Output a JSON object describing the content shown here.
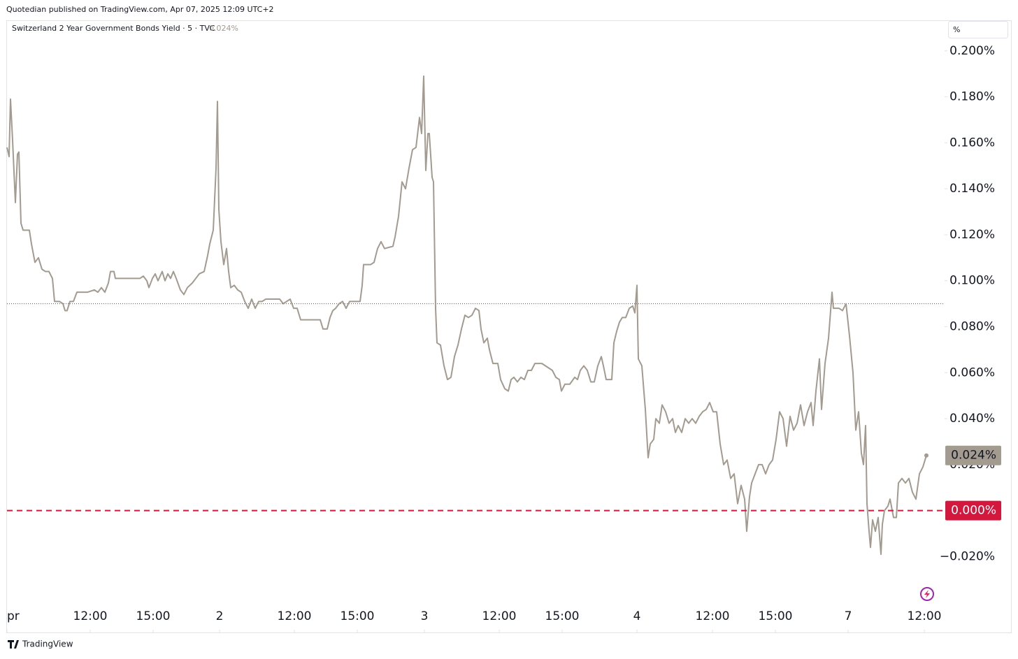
{
  "chart_data": {
    "type": "line",
    "published": "Quotedian published on TradingView.com, Apr 07, 2025 12:09 UTC+2",
    "y_unit": "%",
    "watermark": "TradingView",
    "last_value": {
      "value": 0.024,
      "label": "0.024%"
    },
    "reference_line": 0.09,
    "hlines": [
      {
        "value": 0,
        "label": "0.000%",
        "color": "#d3173d",
        "style": "dashed"
      }
    ],
    "xlim": [
      0,
      2682
    ],
    "ylim": [
      -0.053,
      0.213
    ],
    "xticks": [
      {
        "value": 0,
        "label": "pr"
      },
      {
        "value": 238,
        "label": "12:00"
      },
      {
        "value": 418,
        "label": "15:00"
      },
      {
        "value": 608,
        "label": "2"
      },
      {
        "value": 822,
        "label": "12:00"
      },
      {
        "value": 1002,
        "label": "15:00"
      },
      {
        "value": 1194,
        "label": "3"
      },
      {
        "value": 1408,
        "label": "12:00"
      },
      {
        "value": 1588,
        "label": "15:00"
      },
      {
        "value": 1802,
        "label": "4"
      },
      {
        "value": 2018,
        "label": "12:00"
      },
      {
        "value": 2198,
        "label": "15:00"
      },
      {
        "value": 2406,
        "label": "7"
      },
      {
        "value": 2624,
        "label": "12:00"
      }
    ],
    "yticks": [
      {
        "value": 0.2,
        "label": "0.200%"
      },
      {
        "value": 0.18,
        "label": "0.180%"
      },
      {
        "value": 0.16,
        "label": "0.160%"
      },
      {
        "value": 0.14,
        "label": "0.140%"
      },
      {
        "value": 0.12,
        "label": "0.120%"
      },
      {
        "value": 0.1,
        "label": "0.100%"
      },
      {
        "value": 0.08,
        "label": "0.080%"
      },
      {
        "value": 0.06,
        "label": "0.060%"
      },
      {
        "value": 0.04,
        "label": "0.040%"
      },
      {
        "value": 0.02,
        "label": "0.020%"
      },
      {
        "value": -0.02,
        "label": "−0.020%"
      }
    ],
    "x": [
      0,
      6,
      10,
      16,
      24,
      30,
      34,
      40,
      46,
      64,
      70,
      80,
      90,
      100,
      110,
      120,
      130,
      136,
      150,
      160,
      166,
      172,
      180,
      190,
      200,
      210,
      230,
      250,
      260,
      270,
      280,
      290,
      296,
      306,
      310,
      330,
      380,
      390,
      400,
      406,
      416,
      424,
      432,
      444,
      452,
      460,
      468,
      476,
      484,
      496,
      506,
      516,
      530,
      540,
      550,
      564,
      574,
      580,
      590,
      598,
      602,
      606,
      612,
      620,
      628,
      634,
      640,
      650,
      660,
      670,
      680,
      690,
      700,
      710,
      720,
      730,
      740,
      760,
      780,
      790,
      810,
      820,
      830,
      840,
      860,
      880,
      896,
      904,
      916,
      924,
      932,
      940,
      950,
      960,
      970,
      980,
      1010,
      1016,
      1020,
      1040,
      1050,
      1060,
      1070,
      1080,
      1104,
      1110,
      1120,
      1130,
      1140,
      1150,
      1160,
      1170,
      1180,
      1186,
      1192,
      1198,
      1204,
      1208,
      1216,
      1220,
      1226,
      1230,
      1240,
      1250,
      1260,
      1270,
      1280,
      1290,
      1300,
      1310,
      1320,
      1330,
      1340,
      1350,
      1356,
      1364,
      1374,
      1380,
      1390,
      1404,
      1412,
      1424,
      1434,
      1442,
      1450,
      1460,
      1470,
      1480,
      1490,
      1500,
      1510,
      1530,
      1560,
      1570,
      1580,
      1586,
      1596,
      1610,
      1624,
      1632,
      1640,
      1650,
      1660,
      1670,
      1680,
      1690,
      1700,
      1706,
      1714,
      1730,
      1736,
      1744,
      1752,
      1760,
      1770,
      1780,
      1790,
      1796,
      1802,
      1806,
      1816,
      1826,
      1834,
      1840,
      1850,
      1856,
      1866,
      1874,
      1884,
      1894,
      1904,
      1912,
      1920,
      1930,
      1940,
      1950,
      1960,
      1970,
      1980,
      1990,
      2000,
      2010,
      2020,
      2030,
      2040,
      2050,
      2060,
      2070,
      2080,
      2090,
      2100,
      2110,
      2116,
      2124,
      2130,
      2140,
      2150,
      2160,
      2170,
      2180,
      2190,
      2200,
      2210,
      2220,
      2230,
      2240,
      2250,
      2260,
      2270,
      2280,
      2290,
      2300,
      2306,
      2314,
      2324,
      2330,
      2340,
      2350,
      2360,
      2364,
      2380,
      2390,
      2400,
      2410,
      2420,
      2428,
      2436,
      2444,
      2450,
      2456,
      2460,
      2466,
      2470,
      2476,
      2484,
      2492,
      2500,
      2504,
      2510,
      2520,
      2526,
      2536,
      2544,
      2550,
      2560,
      2570,
      2580,
      2590,
      2600,
      2610,
      2620,
      2630
    ],
    "series": [
      {
        "name": "Switzerland 2 Year Government Bonds Yield · 5 · TVC",
        "color": "#a39a90",
        "values": [
          0.158,
          0.154,
          0.179,
          0.161,
          0.134,
          0.155,
          0.156,
          0.125,
          0.122,
          0.122,
          0.116,
          0.108,
          0.11,
          0.105,
          0.104,
          0.104,
          0.101,
          0.091,
          0.091,
          0.09,
          0.087,
          0.087,
          0.091,
          0.091,
          0.095,
          0.095,
          0.095,
          0.096,
          0.095,
          0.097,
          0.095,
          0.099,
          0.104,
          0.104,
          0.101,
          0.101,
          0.101,
          0.102,
          0.1,
          0.097,
          0.101,
          0.103,
          0.1,
          0.104,
          0.1,
          0.103,
          0.101,
          0.104,
          0.101,
          0.096,
          0.094,
          0.097,
          0.099,
          0.101,
          0.103,
          0.104,
          0.111,
          0.116,
          0.122,
          0.149,
          0.178,
          0.131,
          0.117,
          0.107,
          0.114,
          0.104,
          0.097,
          0.098,
          0.096,
          0.095,
          0.091,
          0.088,
          0.092,
          0.088,
          0.091,
          0.091,
          0.092,
          0.092,
          0.092,
          0.09,
          0.092,
          0.088,
          0.088,
          0.083,
          0.083,
          0.083,
          0.083,
          0.079,
          0.079,
          0.084,
          0.087,
          0.088,
          0.09,
          0.091,
          0.088,
          0.091,
          0.091,
          0.098,
          0.107,
          0.107,
          0.108,
          0.114,
          0.117,
          0.114,
          0.115,
          0.119,
          0.128,
          0.143,
          0.14,
          0.149,
          0.157,
          0.158,
          0.171,
          0.164,
          0.189,
          0.148,
          0.164,
          0.164,
          0.145,
          0.143,
          0.088,
          0.073,
          0.072,
          0.063,
          0.057,
          0.058,
          0.067,
          0.072,
          0.079,
          0.085,
          0.084,
          0.085,
          0.088,
          0.087,
          0.079,
          0.073,
          0.075,
          0.07,
          0.064,
          0.064,
          0.057,
          0.053,
          0.052,
          0.057,
          0.058,
          0.056,
          0.058,
          0.057,
          0.061,
          0.061,
          0.064,
          0.064,
          0.061,
          0.058,
          0.057,
          0.052,
          0.055,
          0.055,
          0.058,
          0.057,
          0.061,
          0.063,
          0.061,
          0.056,
          0.056,
          0.063,
          0.067,
          0.063,
          0.057,
          0.057,
          0.073,
          0.078,
          0.082,
          0.084,
          0.084,
          0.088,
          0.089,
          0.086,
          0.098,
          0.066,
          0.063,
          0.044,
          0.023,
          0.029,
          0.031,
          0.04,
          0.038,
          0.046,
          0.043,
          0.038,
          0.04,
          0.034,
          0.037,
          0.034,
          0.04,
          0.038,
          0.04,
          0.038,
          0.041,
          0.043,
          0.044,
          0.047,
          0.043,
          0.043,
          0.029,
          0.02,
          0.022,
          0.014,
          0.016,
          0.003,
          0.011,
          0.005,
          -0.009,
          0.006,
          0.012,
          0.016,
          0.02,
          0.02,
          0.016,
          0.02,
          0.022,
          0.031,
          0.043,
          0.04,
          0.028,
          0.041,
          0.035,
          0.038,
          0.046,
          0.037,
          0.043,
          0.047,
          0.037,
          0.052,
          0.066,
          0.044,
          0.064,
          0.075,
          0.095,
          0.088,
          0.088,
          0.087,
          0.09,
          0.076,
          0.06,
          0.035,
          0.043,
          0.025,
          0.02,
          0.037,
          0.003,
          -0.009,
          -0.016,
          -0.004,
          -0.009,
          -0.003,
          -0.019,
          -0.006,
          0.0,
          0.002,
          0.005,
          -0.003,
          -0.003,
          0.012,
          0.014,
          0.012,
          0.014,
          0.008,
          0.005,
          0.016,
          0.019,
          0.024
        ]
      }
    ]
  }
}
